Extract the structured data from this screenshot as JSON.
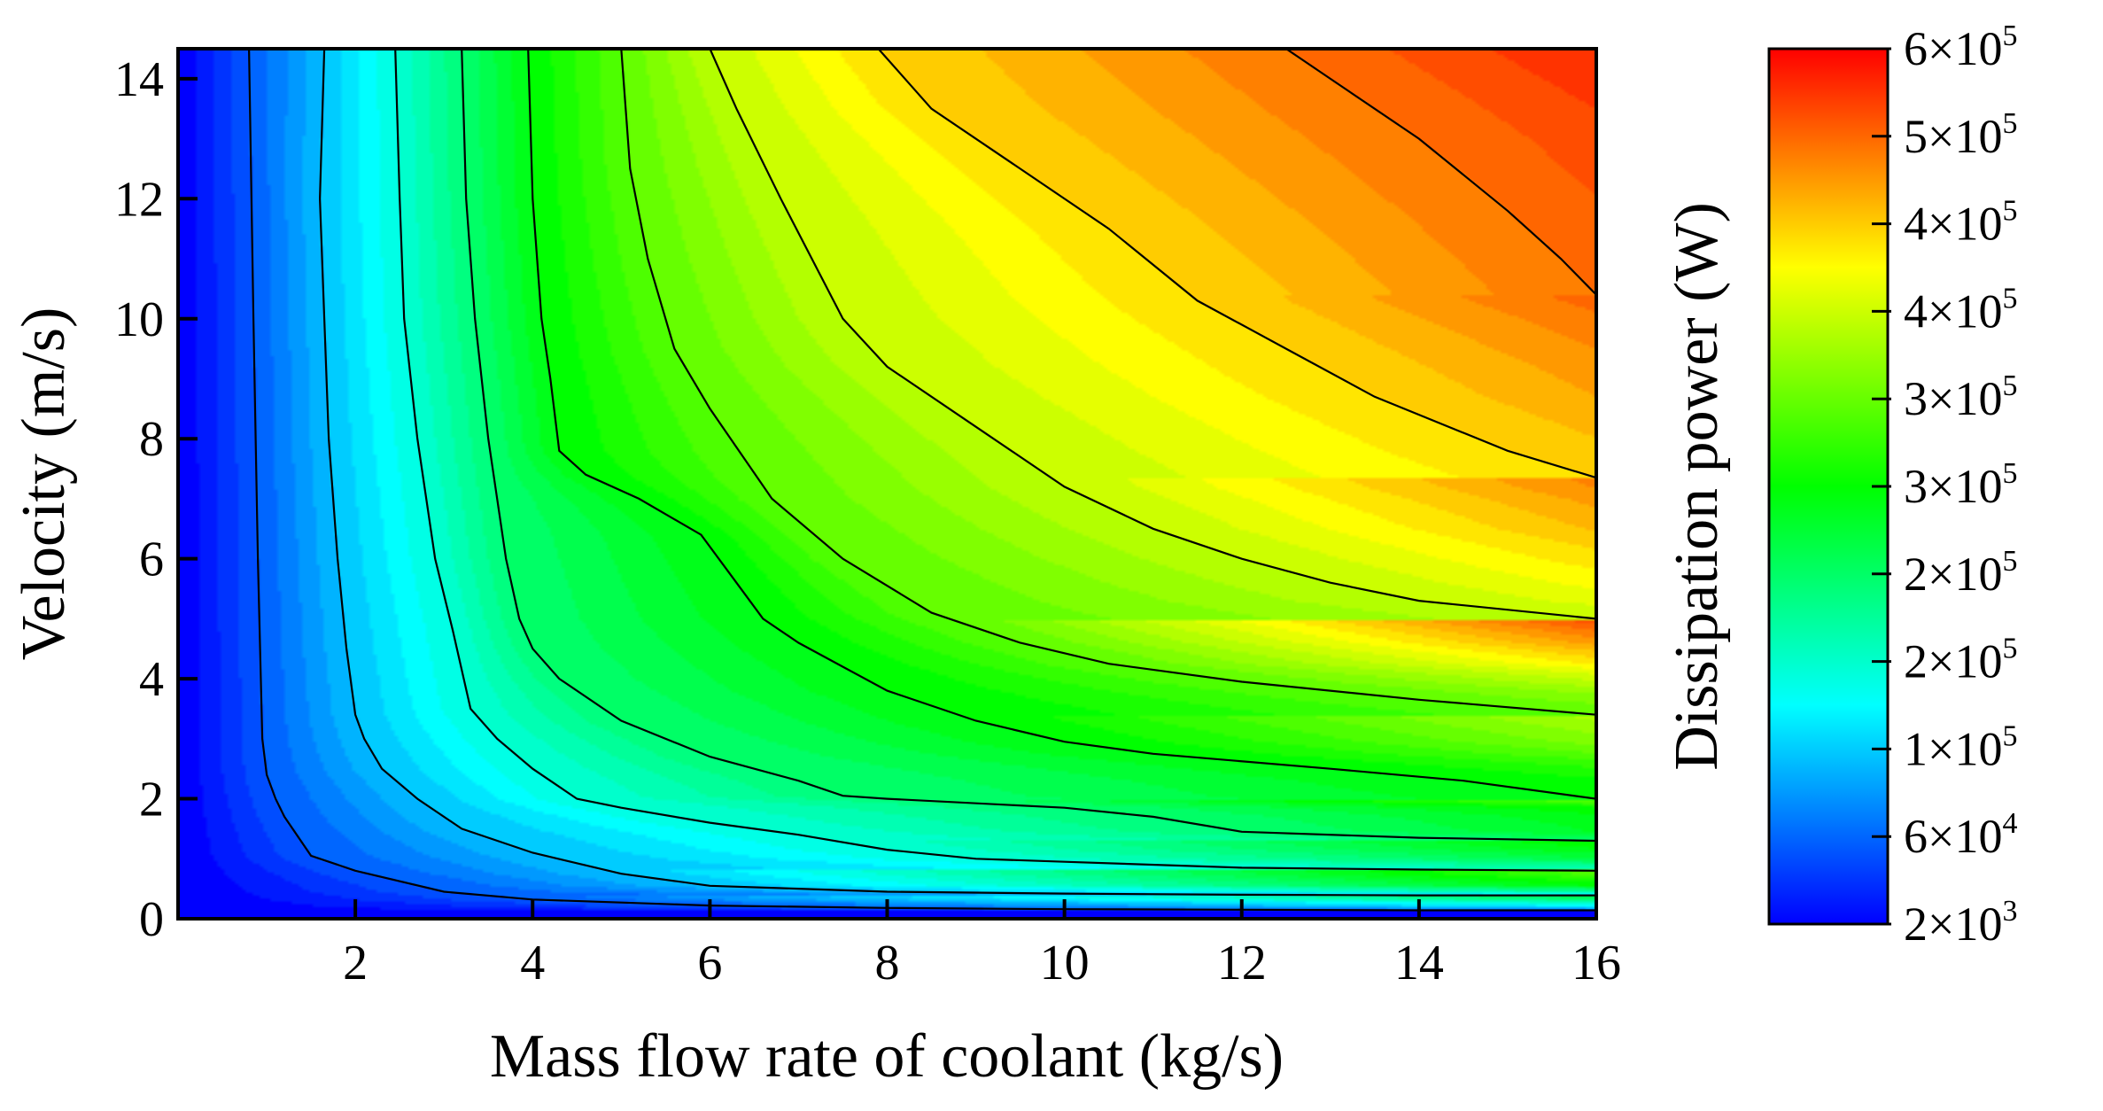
{
  "chart_data": {
    "type": "heatmap",
    "subtype": "filled-contour",
    "title": "",
    "xlabel": "Mass flow rate of coolant (kg/s)",
    "ylabel": "Velocity (m/s)",
    "xlim": [
      0,
      16
    ],
    "ylim": [
      0,
      14.5
    ],
    "xticks": [
      2,
      4,
      6,
      8,
      10,
      12,
      14,
      16
    ],
    "yticks": [
      0,
      2,
      4,
      6,
      8,
      10,
      12,
      14
    ],
    "colorbar": {
      "label": "Dissipation power (W)",
      "range": [
        2000,
        600000
      ],
      "ticks": [
        {
          "mantissa": "2",
          "exponent": "3",
          "pos": 0.0
        },
        {
          "mantissa": "6",
          "exponent": "4",
          "pos": 0.1
        },
        {
          "mantissa": "1",
          "exponent": "5",
          "pos": 0.2
        },
        {
          "mantissa": "2",
          "exponent": "5",
          "pos": 0.3
        },
        {
          "mantissa": "2",
          "exponent": "5",
          "pos": 0.4
        },
        {
          "mantissa": "3",
          "exponent": "5",
          "pos": 0.5
        },
        {
          "mantissa": "3",
          "exponent": "5",
          "pos": 0.6
        },
        {
          "mantissa": "4",
          "exponent": "5",
          "pos": 0.7
        },
        {
          "mantissa": "4",
          "exponent": "5",
          "pos": 0.8
        },
        {
          "mantissa": "5",
          "exponent": "5",
          "pos": 0.9
        },
        {
          "mantissa": "6",
          "exponent": "5",
          "pos": 1.0
        }
      ],
      "colormap": [
        "#0000ff",
        "#0080ff",
        "#00ffff",
        "#00ff80",
        "#00ff00",
        "#80ff00",
        "#ffff00",
        "#ff8000",
        "#ff0000"
      ]
    },
    "contour_lines": [
      {
        "level": 0.1,
        "points": [
          [
            0.8,
            14.5
          ],
          [
            0.85,
            10
          ],
          [
            0.9,
            6
          ],
          [
            0.95,
            3
          ],
          [
            1.0,
            2.4
          ],
          [
            1.1,
            2.0
          ],
          [
            1.2,
            1.7
          ],
          [
            1.5,
            1.05
          ],
          [
            2.0,
            0.8
          ],
          [
            3.0,
            0.45
          ],
          [
            4.0,
            0.32
          ],
          [
            6.0,
            0.22
          ],
          [
            8.0,
            0.18
          ],
          [
            10.0,
            0.16
          ],
          [
            12.0,
            0.15
          ],
          [
            14.0,
            0.14
          ],
          [
            16.0,
            0.14
          ]
        ]
      },
      {
        "level": 0.2,
        "points": [
          [
            1.65,
            14.5
          ],
          [
            1.6,
            12
          ],
          [
            1.65,
            10
          ],
          [
            1.7,
            8
          ],
          [
            1.8,
            6
          ],
          [
            1.9,
            4.5
          ],
          [
            2.0,
            3.4
          ],
          [
            2.1,
            3.0
          ],
          [
            2.3,
            2.5
          ],
          [
            2.7,
            2.0
          ],
          [
            3.2,
            1.5
          ],
          [
            4.0,
            1.1
          ],
          [
            5.0,
            0.75
          ],
          [
            6.0,
            0.55
          ],
          [
            7.0,
            0.5
          ],
          [
            8.0,
            0.45
          ],
          [
            10.0,
            0.42
          ],
          [
            12.0,
            0.4
          ],
          [
            14.0,
            0.39
          ],
          [
            16.0,
            0.39
          ]
        ]
      },
      {
        "level": 0.3,
        "points": [
          [
            2.45,
            14.5
          ],
          [
            2.5,
            12
          ],
          [
            2.55,
            10
          ],
          [
            2.7,
            8
          ],
          [
            2.9,
            6
          ],
          [
            3.1,
            4.8
          ],
          [
            3.3,
            3.5
          ],
          [
            3.6,
            3.0
          ],
          [
            4.0,
            2.5
          ],
          [
            4.5,
            2.0
          ],
          [
            5.0,
            1.85
          ],
          [
            6.0,
            1.6
          ],
          [
            7.0,
            1.4
          ],
          [
            8.0,
            1.15
          ],
          [
            9.0,
            1.0
          ],
          [
            10.0,
            0.95
          ],
          [
            12.0,
            0.85
          ],
          [
            14.0,
            0.82
          ],
          [
            16.0,
            0.8
          ]
        ]
      },
      {
        "level": 0.4,
        "points": [
          [
            3.2,
            14.5
          ],
          [
            3.25,
            12
          ],
          [
            3.35,
            10
          ],
          [
            3.5,
            8
          ],
          [
            3.7,
            6
          ],
          [
            3.85,
            5.0
          ],
          [
            4.0,
            4.5
          ],
          [
            4.3,
            4.0
          ],
          [
            5.0,
            3.3
          ],
          [
            6.0,
            2.7
          ],
          [
            7.0,
            2.3
          ],
          [
            7.5,
            2.05
          ],
          [
            8.0,
            2.0
          ],
          [
            10.0,
            1.85
          ],
          [
            11.0,
            1.7
          ],
          [
            12.0,
            1.45
          ],
          [
            14.0,
            1.35
          ],
          [
            16.0,
            1.3
          ]
        ]
      },
      {
        "level": 0.5,
        "points": [
          [
            3.95,
            14.5
          ],
          [
            4.0,
            12
          ],
          [
            4.1,
            10
          ],
          [
            4.2,
            9
          ],
          [
            4.3,
            7.8
          ],
          [
            4.6,
            7.4
          ],
          [
            5.2,
            7.0
          ],
          [
            5.9,
            6.4
          ],
          [
            6.2,
            5.8
          ],
          [
            6.6,
            5.0
          ],
          [
            7.0,
            4.6
          ],
          [
            7.5,
            4.2
          ],
          [
            8.0,
            3.8
          ],
          [
            9.0,
            3.3
          ],
          [
            10.0,
            2.95
          ],
          [
            11.0,
            2.75
          ],
          [
            13.0,
            2.5
          ],
          [
            14.5,
            2.3
          ],
          [
            16.0,
            2.0
          ]
        ]
      },
      {
        "level": 0.6,
        "points": [
          [
            5.0,
            14.5
          ],
          [
            5.1,
            12.5
          ],
          [
            5.3,
            11
          ],
          [
            5.6,
            9.5
          ],
          [
            6.0,
            8.5
          ],
          [
            6.7,
            7.0
          ],
          [
            7.5,
            6.0
          ],
          [
            8.5,
            5.1
          ],
          [
            9.5,
            4.6
          ],
          [
            10.5,
            4.25
          ],
          [
            12.0,
            3.95
          ],
          [
            14.0,
            3.65
          ],
          [
            16.0,
            3.4
          ]
        ]
      },
      {
        "level": 0.7,
        "points": [
          [
            6.0,
            14.5
          ],
          [
            6.3,
            13.5
          ],
          [
            6.8,
            12
          ],
          [
            7.5,
            10
          ],
          [
            8.0,
            9.2
          ],
          [
            9.0,
            8.2
          ],
          [
            10.0,
            7.2
          ],
          [
            11.0,
            6.5
          ],
          [
            12.0,
            6.0
          ],
          [
            13.0,
            5.6
          ],
          [
            14.0,
            5.3
          ],
          [
            16.0,
            5.0
          ]
        ]
      },
      {
        "level": 0.8,
        "points": [
          [
            7.9,
            14.5
          ],
          [
            8.5,
            13.5
          ],
          [
            9.5,
            12.5
          ],
          [
            10.5,
            11.5
          ],
          [
            11.5,
            10.3
          ],
          [
            12.5,
            9.5
          ],
          [
            13.5,
            8.7
          ],
          [
            15.0,
            7.8
          ],
          [
            16.0,
            7.35
          ]
        ]
      },
      {
        "level": 0.9,
        "points": [
          [
            12.5,
            14.5
          ],
          [
            13.0,
            14.0
          ],
          [
            14.0,
            13.0
          ],
          [
            15.0,
            11.8
          ],
          [
            15.6,
            11.0
          ],
          [
            16.0,
            10.4
          ]
        ]
      }
    ]
  }
}
